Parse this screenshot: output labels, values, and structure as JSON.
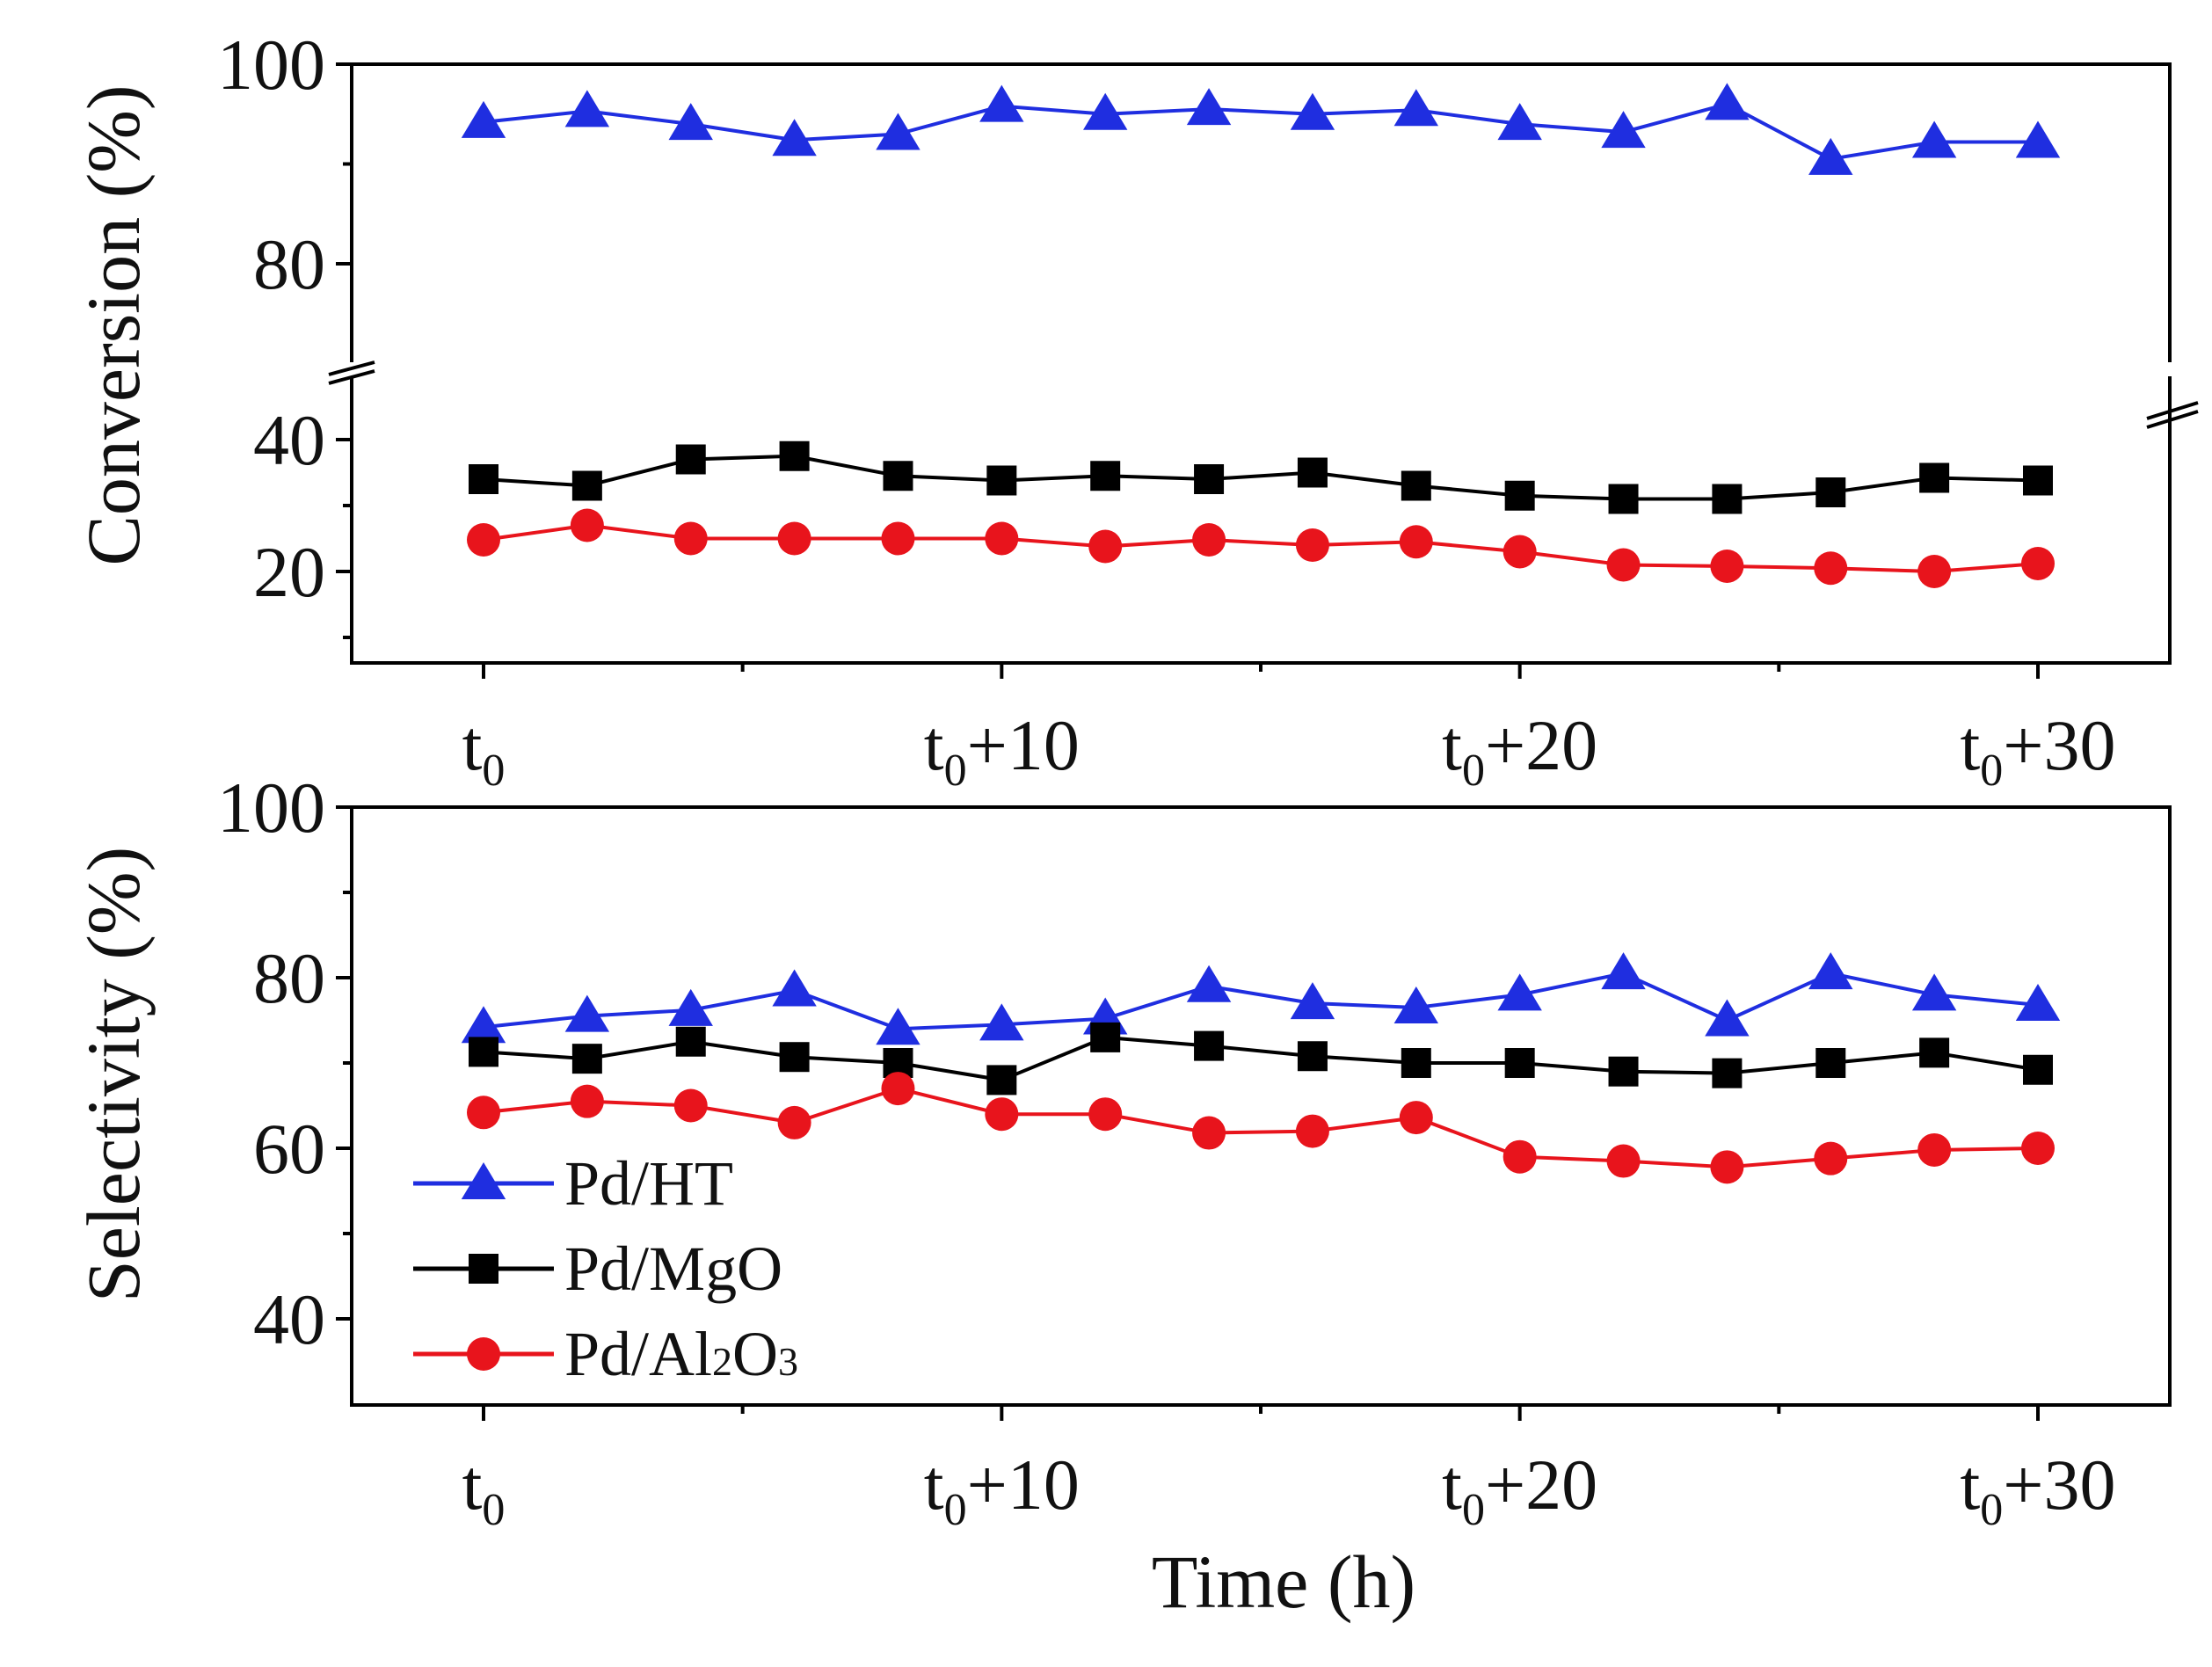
{
  "chart_data": [
    {
      "type": "line",
      "panel": "top",
      "ylabel": "Conversion (%)",
      "xlabel": "",
      "y_axis_break": [
        45,
        70
      ],
      "ylim_lower": [
        5,
        45
      ],
      "ylim_upper": [
        70,
        100
      ],
      "y_ticks": [
        20,
        40,
        80,
        100
      ],
      "x_ticks": [
        {
          "value": 0,
          "base": "t",
          "sub": "0",
          "suffix": ""
        },
        {
          "value": 10,
          "base": "t",
          "sub": "0",
          "suffix": "+10"
        },
        {
          "value": 20,
          "base": "t",
          "sub": "0",
          "suffix": "+20"
        },
        {
          "value": 30,
          "base": "t",
          "sub": "0",
          "suffix": "+30"
        }
      ],
      "x": [
        0,
        2,
        4,
        6,
        8,
        10,
        12,
        14,
        16,
        18,
        20,
        22,
        24,
        26,
        28,
        30
      ],
      "series": [
        {
          "name": "Pd/HT",
          "color": "#1f2ee0",
          "marker": "triangle",
          "values": [
            94.2,
            95.3,
            94.0,
            92.4,
            93.0,
            95.8,
            95.0,
            95.5,
            95.0,
            95.4,
            94.0,
            93.2,
            96.0,
            90.5,
            92.2,
            92.2
          ]
        },
        {
          "name": "Pd/MgO",
          "color": "#000000",
          "marker": "square",
          "values": [
            34.0,
            33.0,
            37.0,
            37.5,
            34.5,
            33.8,
            34.5,
            34.0,
            35.0,
            33.0,
            31.5,
            31.0,
            31.0,
            32.0,
            34.2,
            33.8
          ]
        },
        {
          "name": "Pd/Al2O3",
          "color": "#e8141c",
          "marker": "circle",
          "values": [
            24.8,
            27.0,
            25.0,
            25.0,
            25.0,
            25.0,
            23.8,
            24.8,
            24.0,
            24.5,
            23.0,
            21.0,
            20.8,
            20.5,
            20.0,
            21.2
          ]
        }
      ]
    },
    {
      "type": "line",
      "panel": "bottom",
      "ylabel": "Selectivity (%)",
      "xlabel": "Time (h)",
      "ylim": [
        30,
        100
      ],
      "y_ticks": [
        40,
        60,
        80,
        100
      ],
      "x_ticks": [
        {
          "value": 0,
          "base": "t",
          "sub": "0",
          "suffix": ""
        },
        {
          "value": 10,
          "base": "t",
          "sub": "0",
          "suffix": "+10"
        },
        {
          "value": 20,
          "base": "t",
          "sub": "0",
          "suffix": "+20"
        },
        {
          "value": 30,
          "base": "t",
          "sub": "0",
          "suffix": "+30"
        }
      ],
      "x": [
        0,
        2,
        4,
        6,
        8,
        10,
        12,
        14,
        16,
        18,
        20,
        22,
        24,
        26,
        28,
        30
      ],
      "series": [
        {
          "name": "Pd/HT",
          "color": "#1f2ee0",
          "marker": "triangle",
          "values": [
            74.2,
            75.5,
            76.2,
            78.5,
            74.0,
            74.5,
            75.2,
            79.0,
            77.0,
            76.5,
            78.0,
            80.5,
            75.0,
            80.5,
            78.0,
            76.8
          ]
        },
        {
          "name": "Pd/MgO",
          "color": "#000000",
          "marker": "square",
          "values": [
            71.3,
            70.5,
            72.5,
            70.7,
            70.0,
            68.0,
            73.0,
            72.0,
            70.8,
            70.0,
            70.0,
            69.0,
            68.8,
            70.0,
            71.2,
            69.2
          ]
        },
        {
          "name": "Pd/Al2O3",
          "color": "#e8141c",
          "marker": "circle",
          "values": [
            64.2,
            65.5,
            65.0,
            63.0,
            67.0,
            64.0,
            64.0,
            61.8,
            62.0,
            63.6,
            59.0,
            58.5,
            57.8,
            58.8,
            59.8,
            60.0
          ]
        }
      ],
      "legend": {
        "placement": "bottom-left",
        "entries": [
          {
            "label": "Pd/HT",
            "color": "#1f2ee0",
            "marker": "triangle"
          },
          {
            "label": "Pd/MgO",
            "color": "#000000",
            "marker": "square"
          },
          {
            "label_main": "Pd/Al",
            "label_sub1": "2",
            "label_mid": "O",
            "label_sub2": "3",
            "color": "#e8141c",
            "marker": "circle"
          }
        ]
      }
    }
  ]
}
